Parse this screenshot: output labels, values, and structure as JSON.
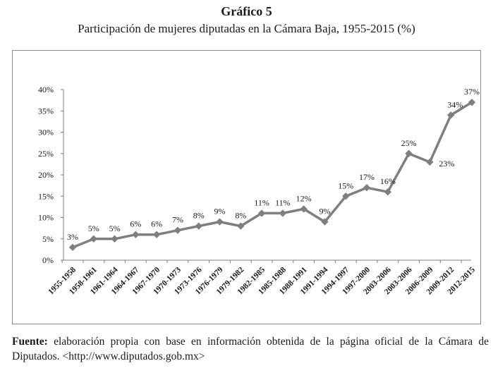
{
  "figure": {
    "title": "Gráfico 5",
    "subtitle": "Participación de mujeres diputadas en la Cámara Baja, 1955-2015 (%)"
  },
  "source": {
    "label": "Fuente:",
    "text": " elaboración propia con base en información obtenida de la página oficial de la Cámara de Diputados. <http://www.diputados.gob.mx>"
  },
  "colors": {
    "line": "#7f7f7f",
    "marker": "#7f7f7f",
    "axis": "#7f7f7f",
    "text": "#1a1a1a"
  },
  "chart_data": {
    "type": "line",
    "title": "Participación de mujeres diputadas en la Cámara Baja, 1955-2015 (%)",
    "xlabel": "",
    "ylabel": "",
    "ylim": [
      0,
      40
    ],
    "yticks": [
      "0%",
      "5%",
      "10%",
      "15%",
      "20%",
      "25%",
      "30%",
      "35%",
      "40%"
    ],
    "grid": false,
    "legend": "none",
    "categories": [
      "1955-1958",
      "1958-1961",
      "1961-1964",
      "1964-1967",
      "1967-1970",
      "1970-1973",
      "1973-1976",
      "1976-1979",
      "1979-1982",
      "1982-1985",
      "1985-1988",
      "1988-1991",
      "1991-1994",
      "1994-1997",
      "1997-2000",
      "2003-2006",
      "2003-2006",
      "2006-2009",
      "2009-2012",
      "2012-2015"
    ],
    "values": [
      3,
      5,
      5,
      6,
      6,
      7,
      8,
      9,
      8,
      11,
      11,
      12,
      9,
      15,
      17,
      16,
      25,
      23,
      34,
      37
    ],
    "data_labels": [
      "3%",
      "5%",
      "5%",
      "6%",
      "6%",
      "7%",
      "8%",
      "9%",
      "8%",
      "11%",
      "11%",
      "12%",
      "9%",
      "15%",
      "17%",
      "16%",
      "25%",
      "23%",
      "34%",
      "37%"
    ]
  }
}
